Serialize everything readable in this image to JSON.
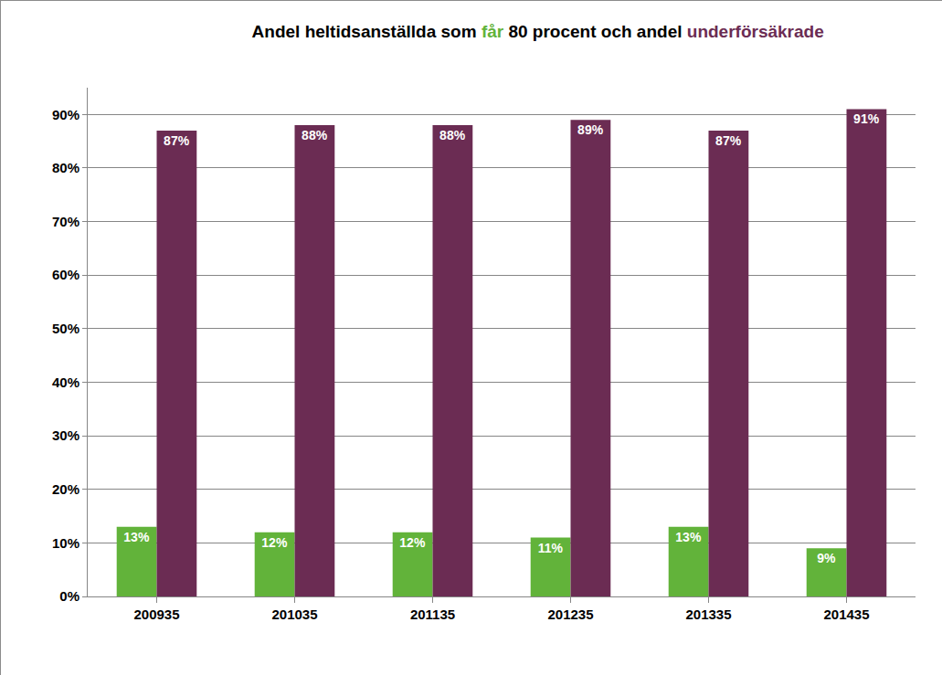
{
  "chart_data": {
    "type": "bar",
    "title": "Andel heltidsanställda som får 80 procent och andel underförsäkrade",
    "categories": [
      "200935",
      "201035",
      "201135",
      "201235",
      "201335",
      "201435"
    ],
    "series": [
      {
        "name": "får",
        "color": "#62b33a",
        "values": [
          13,
          12,
          12,
          11,
          13,
          9
        ],
        "value_labels": [
          "13%",
          "12%",
          "12%",
          "11%",
          "13%",
          "9%"
        ]
      },
      {
        "name": "underförsäkrade",
        "color": "#6b2c53",
        "values": [
          87,
          88,
          88,
          89,
          87,
          91
        ],
        "value_labels": [
          "87%",
          "88%",
          "88%",
          "89%",
          "87%",
          "91%"
        ]
      }
    ],
    "ylim": [
      0,
      95
    ],
    "yticks": [
      {
        "value": 0,
        "label": "0%"
      },
      {
        "value": 10,
        "label": "10%"
      },
      {
        "value": 20,
        "label": "20%"
      },
      {
        "value": 30,
        "label": "30%"
      },
      {
        "value": 40,
        "label": "40%"
      },
      {
        "value": 50,
        "label": "50%"
      },
      {
        "value": 60,
        "label": "60%"
      },
      {
        "value": 70,
        "label": "70%"
      },
      {
        "value": 80,
        "label": "80%"
      },
      {
        "value": 90,
        "label": "90%"
      }
    ],
    "grid": true,
    "data_labels": true
  }
}
